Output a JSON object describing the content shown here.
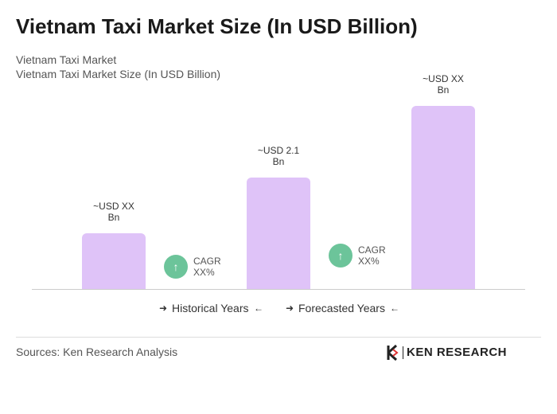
{
  "chart_data": {
    "type": "bar",
    "title": "Vietnam Taxi Market Size (In USD Billion)",
    "subtitle": [
      "Vietnam Taxi Market",
      "Vietnam Taxi Market Size (In USD Billion)"
    ],
    "categories": [
      null,
      null,
      null
    ],
    "values": [
      1.05,
      2.1,
      3.45
    ],
    "value_labels": [
      "~USD XX Bn",
      "~USD 2.1 Bn",
      "~USD XX Bn"
    ],
    "color": "#dfc3f8",
    "ylim": [
      0,
      3.45
    ],
    "annotations": [
      "CAGR XX%",
      "CAGR XX%"
    ],
    "legend": [
      "Historical Years",
      "Forecasted Years"
    ],
    "source": "Sources: Ken Research Analysis",
    "logo": "KEN RESEARCH"
  }
}
